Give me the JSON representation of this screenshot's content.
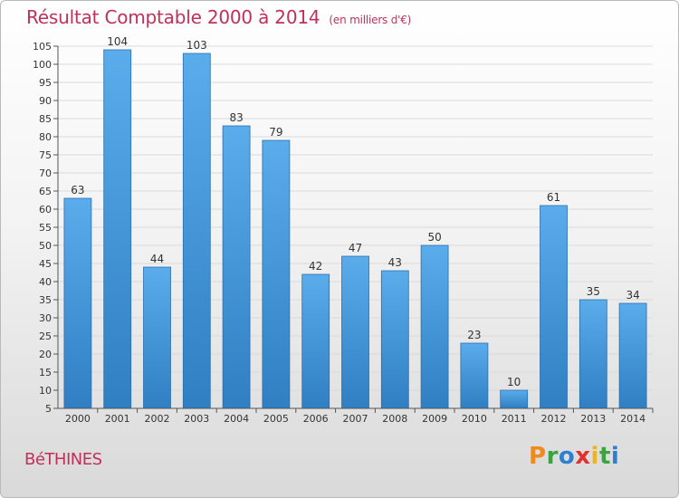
{
  "title": "Résultat Comptable 2000 à 2014",
  "subtitle": "(en milliers d'€)",
  "town": "BéTHINES",
  "logo": {
    "text": "Proxiti",
    "letters": [
      {
        "char": "P",
        "color": "#f08a1d"
      },
      {
        "char": "r",
        "color": "#3aa43f"
      },
      {
        "char": "o",
        "color": "#2d7fd0"
      },
      {
        "char": "x",
        "color": "#e0312f"
      },
      {
        "char": "i",
        "color": "#f2b21b"
      },
      {
        "char": "t",
        "color": "#3aa43f"
      },
      {
        "char": "i",
        "color": "#2d7fd0"
      }
    ]
  },
  "colors": {
    "title": "#c0305a",
    "bar_top": "#5aaceb",
    "bar_bottom": "#2f7fc2",
    "bar_edge": "#2c6fb0"
  },
  "chart_data": {
    "type": "bar",
    "categories": [
      "2000",
      "2001",
      "2002",
      "2003",
      "2004",
      "2005",
      "2006",
      "2007",
      "2008",
      "2009",
      "2010",
      "2011",
      "2012",
      "2013",
      "2014"
    ],
    "values": [
      63,
      104,
      44,
      103,
      83,
      79,
      42,
      47,
      43,
      50,
      23,
      10,
      61,
      35,
      34
    ],
    "title": "Résultat Comptable 2000 à 2014",
    "subtitle": "(en milliers d'€)",
    "ylim": [
      5,
      105
    ],
    "yticks": [
      5,
      10,
      15,
      20,
      25,
      30,
      35,
      40,
      45,
      50,
      55,
      60,
      65,
      70,
      75,
      80,
      85,
      90,
      95,
      100,
      105
    ],
    "grid": true,
    "data_labels": true
  }
}
